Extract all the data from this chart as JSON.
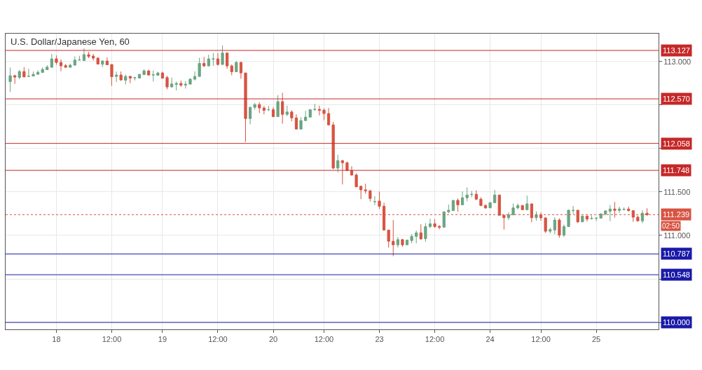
{
  "chart_data": {
    "type": "candlestick",
    "title": "U.S. Dollar/Japanese Yen, 60",
    "categories": [
      null,
      null,
      null,
      null,
      null,
      null,
      null,
      null,
      null,
      null,
      "18",
      null,
      null,
      null,
      null,
      null,
      null,
      null,
      null,
      null,
      null,
      null,
      "12:00",
      null,
      null,
      null,
      null,
      null,
      null,
      null,
      null,
      null,
      null,
      "19",
      null,
      null,
      null,
      null,
      null,
      null,
      null,
      null,
      null,
      null,
      null,
      "12:00",
      null,
      null,
      null,
      null,
      null,
      null,
      null,
      null,
      null,
      null,
      null,
      "20",
      null,
      null,
      null,
      null,
      null,
      null,
      null,
      null,
      null,
      null,
      "12:00",
      null,
      null,
      null,
      null,
      null,
      null,
      null,
      null,
      null,
      null,
      null,
      "23",
      null,
      null,
      null,
      null,
      null,
      null,
      null,
      null,
      null,
      null,
      null,
      "12:00",
      null,
      null,
      null,
      null,
      null,
      null,
      null,
      null,
      null,
      null,
      null,
      "24",
      null,
      null,
      null,
      null,
      null,
      null,
      null,
      null,
      null,
      null,
      "12:00",
      null,
      null,
      null,
      null,
      null,
      null,
      null,
      null,
      null,
      null,
      null,
      "25",
      null,
      null,
      null,
      null,
      null,
      null,
      null,
      null,
      null,
      null,
      null
    ],
    "colors": [
      "#6ba583",
      "#d75442",
      "#6ba583",
      "#d75442",
      "#6ba583",
      "#6ba583",
      "#6ba583",
      "#6ba583",
      "#6ba583",
      "#6ba583",
      "#d75442",
      "#d75442",
      "#d75442",
      "#6ba583",
      "#6ba583",
      "#6ba583",
      "#6ba583",
      "#d75442",
      "#d75442",
      "#d75442",
      "#6ba583",
      "#d75442",
      "#d75442",
      "#6ba583",
      "#d75442",
      "#6ba583",
      "#d75442",
      "#6ba583",
      "#6ba583",
      "#6ba583",
      "#d75442",
      "#6ba583",
      "#6ba583",
      "#d75442",
      "#d75442",
      "#6ba583",
      "#6ba583",
      "#d75442",
      "#6ba583",
      "#6ba583",
      "#6ba583",
      "#6ba583",
      "#d75442",
      "#6ba583",
      "#6ba583",
      "#d75442",
      "#6ba583",
      "#d75442",
      "#d75442",
      "#6ba583",
      "#d75442",
      "#d75442",
      "#6ba583",
      "#6ba583",
      "#d75442",
      "#d75442",
      "#6ba583",
      "#d75442",
      "#6ba583",
      "#d75442",
      "#6ba583",
      "#d75442",
      "#d75442",
      "#6ba583",
      "#6ba583",
      "#6ba583",
      "#6ba583",
      "#d75442",
      "#d75442",
      "#d75442",
      "#d75442",
      "#6ba583",
      "#d75442",
      "#d75442",
      "#d75442",
      "#d75442",
      "#d75442",
      "#d75442",
      "#d75442",
      "#6ba583",
      "#d75442",
      "#d75442",
      "#d75442",
      "#d75442",
      "#6ba583",
      "#d75442",
      "#6ba583",
      "#6ba583",
      "#6ba583",
      "#d75442",
      "#6ba583",
      "#6ba583",
      "#d75442",
      "#d75442",
      "#6ba583",
      "#6ba583",
      "#6ba583",
      "#d75442",
      "#6ba583",
      "#6ba583",
      "#6ba583",
      "#d75442",
      "#d75442",
      "#d75442",
      "#6ba583",
      "#6ba583",
      "#d75442",
      "#d75442",
      "#6ba583",
      "#6ba583",
      "#6ba583",
      "#d75442",
      "#6ba583",
      "#d75442",
      "#6ba583",
      "#d75442",
      "#d75442",
      "#6ba583",
      "#6ba583",
      "#d75442",
      "#6ba583",
      "#6ba583",
      "#6ba583",
      "#d75442",
      "#6ba583",
      "#d75442",
      "#6ba583",
      "#6ba583",
      "#6ba583",
      "#6ba583",
      "#6ba583",
      "#d75442",
      "#6ba583",
      "#6ba583",
      "#d75442",
      "#d75442",
      "#d75442",
      "#6ba583",
      "#d75442"
    ],
    "ohlc": [
      [
        112.769,
        112.93,
        112.648,
        112.836
      ],
      [
        112.836,
        112.849,
        112.742,
        112.82
      ],
      [
        112.817,
        112.903,
        112.796,
        112.884
      ],
      [
        112.884,
        112.935,
        112.817,
        112.823
      ],
      [
        112.828,
        112.917,
        112.828,
        112.831
      ],
      [
        112.833,
        112.884,
        112.833,
        112.852
      ],
      [
        112.852,
        112.898,
        112.849,
        112.876
      ],
      [
        112.874,
        112.93,
        112.868,
        112.909
      ],
      [
        112.906,
        112.957,
        112.903,
        112.935
      ],
      [
        112.933,
        113.086,
        112.93,
        113.03
      ],
      [
        113.03,
        113.07,
        112.962,
        112.989
      ],
      [
        112.989,
        113.024,
        112.887,
        112.949
      ],
      [
        112.952,
        112.97,
        112.93,
        112.933
      ],
      [
        112.933,
        112.976,
        112.93,
        112.957
      ],
      [
        112.957,
        113.059,
        112.954,
        113.016
      ],
      [
        113.016,
        113.065,
        113.011,
        113.019
      ],
      [
        113.011,
        113.151,
        113.011,
        113.078
      ],
      [
        113.078,
        113.11,
        113.038,
        113.059
      ],
      [
        113.062,
        113.086,
        113.011,
        113.038
      ],
      [
        113.038,
        113.051,
        112.968,
        112.97
      ],
      [
        112.968,
        113.016,
        112.935,
        113.005
      ],
      [
        113.005,
        113.046,
        112.957,
        112.962
      ],
      [
        112.965,
        112.965,
        112.72,
        112.825
      ],
      [
        112.828,
        112.884,
        112.763,
        112.844
      ],
      [
        112.844,
        112.884,
        112.777,
        112.788
      ],
      [
        112.785,
        112.849,
        112.734,
        112.828
      ],
      [
        112.828,
        112.836,
        112.75,
        112.809
      ],
      [
        112.812,
        112.823,
        112.782,
        112.815
      ],
      [
        112.809,
        112.855,
        112.806,
        112.852
      ],
      [
        112.849,
        112.911,
        112.847,
        112.892
      ],
      [
        112.892,
        112.903,
        112.839,
        112.844
      ],
      [
        112.844,
        112.895,
        112.769,
        112.847
      ],
      [
        112.841,
        112.882,
        112.836,
        112.868
      ],
      [
        112.868,
        112.882,
        112.801,
        112.809
      ],
      [
        112.815,
        112.836,
        112.68,
        112.707
      ],
      [
        112.707,
        112.815,
        112.702,
        112.742
      ],
      [
        112.736,
        112.769,
        112.667,
        112.747
      ],
      [
        112.747,
        112.782,
        112.707,
        112.728
      ],
      [
        112.728,
        112.774,
        112.688,
        112.739
      ],
      [
        112.739,
        112.809,
        112.737,
        112.796
      ],
      [
        112.796,
        112.887,
        112.782,
        112.828
      ],
      [
        112.828,
        113.043,
        112.823,
        112.978
      ],
      [
        112.978,
        113.051,
        112.938,
        112.949
      ],
      [
        112.949,
        113.078,
        112.944,
        113.03
      ],
      [
        113.027,
        113.097,
        112.949,
        113.03
      ],
      [
        113.03,
        113.097,
        112.952,
        112.965
      ],
      [
        112.965,
        113.185,
        112.965,
        113.097
      ],
      [
        113.097,
        113.105,
        112.917,
        112.949
      ],
      [
        112.949,
        112.965,
        112.841,
        112.882
      ],
      [
        112.882,
        113.005,
        112.879,
        112.989
      ],
      [
        112.989,
        112.997,
        112.801,
        112.868
      ],
      [
        112.868,
        112.868,
        112.075,
        112.344
      ],
      [
        112.344,
        112.481,
        112.277,
        112.473
      ],
      [
        112.473,
        112.522,
        112.446,
        112.505
      ],
      [
        112.505,
        112.532,
        112.406,
        112.465
      ],
      [
        112.465,
        112.487,
        112.392,
        112.438
      ],
      [
        112.444,
        112.489,
        112.43,
        112.446
      ],
      [
        112.446,
        112.473,
        112.36,
        112.366
      ],
      [
        112.366,
        112.613,
        112.366,
        112.538
      ],
      [
        112.538,
        112.64,
        112.285,
        112.392
      ],
      [
        112.392,
        112.492,
        112.371,
        112.419
      ],
      [
        112.419,
        112.438,
        112.312,
        112.352
      ],
      [
        112.352,
        112.392,
        112.223,
        112.223
      ],
      [
        112.223,
        112.36,
        112.22,
        112.32
      ],
      [
        112.32,
        112.433,
        112.317,
        112.36
      ],
      [
        112.36,
        112.446,
        112.36,
        112.446
      ],
      [
        112.446,
        112.513,
        112.433,
        112.449
      ],
      [
        112.449,
        112.492,
        112.379,
        112.438
      ],
      [
        112.441,
        112.46,
        112.325,
        112.401
      ],
      [
        112.401,
        112.465,
        112.263,
        112.271
      ],
      [
        112.271,
        112.306,
        111.761,
        111.774
      ],
      [
        111.774,
        111.927,
        111.726,
        111.86
      ],
      [
        111.86,
        111.868,
        111.586,
        111.836
      ],
      [
        111.836,
        111.849,
        111.739,
        111.747
      ],
      [
        111.747,
        111.796,
        111.688,
        111.694
      ],
      [
        111.694,
        111.712,
        111.554,
        111.559
      ],
      [
        111.565,
        111.573,
        111.417,
        111.524
      ],
      [
        111.524,
        111.594,
        111.478,
        111.513
      ],
      [
        111.513,
        111.524,
        111.39,
        111.425
      ],
      [
        111.387,
        111.452,
        111.349,
        111.39
      ],
      [
        111.395,
        111.505,
        111.304,
        111.336
      ],
      [
        111.336,
        111.376,
        111.062,
        111.062
      ],
      [
        111.062,
        111.062,
        110.86,
        110.933
      ],
      [
        110.933,
        111.177,
        110.761,
        110.892
      ],
      [
        110.892,
        110.981,
        110.86,
        110.952
      ],
      [
        110.952,
        110.96,
        110.868,
        110.892
      ],
      [
        110.892,
        110.952,
        110.887,
        110.946
      ],
      [
        110.941,
        111.016,
        110.909,
        110.989
      ],
      [
        110.989,
        111.056,
        110.909,
        111.03
      ],
      [
        111.03,
        111.129,
        110.949,
        110.96
      ],
      [
        110.962,
        111.142,
        110.927,
        111.102
      ],
      [
        111.102,
        111.191,
        111.083,
        111.134
      ],
      [
        111.134,
        111.188,
        111.089,
        111.102
      ],
      [
        111.105,
        111.116,
        111.07,
        111.094
      ],
      [
        111.094,
        111.272,
        111.094,
        111.272
      ],
      [
        111.272,
        111.355,
        111.255,
        111.29
      ],
      [
        111.285,
        111.403,
        111.282,
        111.403
      ],
      [
        111.403,
        111.425,
        111.272,
        111.352
      ],
      [
        111.352,
        111.505,
        111.349,
        111.433
      ],
      [
        111.433,
        111.551,
        111.392,
        111.465
      ],
      [
        111.47,
        111.511,
        111.438,
        111.473
      ],
      [
        111.473,
        111.519,
        111.406,
        111.417
      ],
      [
        111.417,
        111.438,
        111.336,
        111.344
      ],
      [
        111.344,
        111.358,
        111.304,
        111.317
      ],
      [
        111.317,
        111.384,
        111.312,
        111.376
      ],
      [
        111.376,
        111.524,
        111.371,
        111.465
      ],
      [
        111.465,
        111.465,
        111.231,
        111.231
      ],
      [
        111.231,
        111.242,
        111.067,
        111.204
      ],
      [
        111.204,
        111.269,
        111.177,
        111.237
      ],
      [
        111.237,
        111.366,
        111.231,
        111.317
      ],
      [
        111.317,
        111.366,
        111.298,
        111.344
      ],
      [
        111.344,
        111.349,
        111.29,
        111.296
      ],
      [
        111.296,
        111.457,
        111.29,
        111.363
      ],
      [
        111.363,
        111.363,
        111.151,
        111.204
      ],
      [
        111.204,
        111.277,
        111.169,
        111.237
      ],
      [
        111.237,
        111.263,
        111.169,
        111.202
      ],
      [
        111.202,
        111.204,
        111.027,
        111.048
      ],
      [
        111.048,
        111.089,
        111.022,
        111.067
      ],
      [
        111.062,
        111.21,
        111.013,
        111.177
      ],
      [
        111.177,
        111.196,
        110.973,
        111.003
      ],
      [
        111.003,
        111.124,
        110.981,
        111.102
      ],
      [
        111.102,
        111.296,
        111.097,
        111.29
      ],
      [
        111.285,
        111.339,
        111.25,
        111.288
      ],
      [
        111.29,
        111.29,
        111.142,
        111.156
      ],
      [
        111.156,
        111.223,
        111.156,
        111.223
      ],
      [
        111.223,
        111.228,
        111.161,
        111.188
      ],
      [
        111.194,
        111.231,
        111.183,
        111.196
      ],
      [
        111.196,
        111.21,
        111.164,
        111.199
      ],
      [
        111.199,
        111.255,
        111.196,
        111.247
      ],
      [
        111.247,
        111.29,
        111.231,
        111.282
      ],
      [
        111.277,
        111.349,
        111.164,
        111.304
      ],
      [
        111.304,
        111.384,
        111.204,
        111.288
      ],
      [
        111.288,
        111.331,
        111.261,
        111.304
      ],
      [
        111.298,
        111.323,
        111.288,
        111.301
      ],
      [
        111.304,
        111.331,
        111.274,
        111.285
      ],
      [
        111.285,
        111.285,
        111.156,
        111.21
      ],
      [
        111.21,
        111.228,
        111.161,
        111.167
      ],
      [
        111.167,
        111.29,
        111.14,
        111.255
      ],
      [
        111.255,
        111.312,
        111.223,
        111.239
      ]
    ],
    "ylim": [
      109.92,
      113.32
    ],
    "yticks": [
      {
        "value": 110,
        "label": null
      },
      {
        "value": 110.5,
        "label": null
      },
      {
        "value": 111,
        "label": "111.000"
      },
      {
        "value": 111.5,
        "label": "111.500"
      },
      {
        "value": 112,
        "label": null
      },
      {
        "value": 112.5,
        "label": null
      },
      {
        "value": 113,
        "label": "113.000"
      }
    ],
    "grid": true,
    "ref_lines": [
      {
        "axis": "y",
        "value": 113.127,
        "label": "113.127",
        "color": "#c62828"
      },
      {
        "axis": "y",
        "value": 112.57,
        "label": "112.570",
        "color": "#c62828"
      },
      {
        "axis": "y",
        "value": 112.058,
        "label": "112.058",
        "color": "#c62828"
      },
      {
        "axis": "y",
        "value": 111.748,
        "label": "111.748",
        "color": "#c62828"
      },
      {
        "axis": "y",
        "value": 111.239,
        "label": "111.239",
        "color": "#d75442",
        "line_style": "dotted"
      },
      {
        "axis": "y",
        "value": 110.787,
        "label": "110.787",
        "color": "#1a1aa8"
      },
      {
        "axis": "y",
        "value": 110.548,
        "label": "110.548",
        "color": "#1a1aa8"
      },
      {
        "axis": "y",
        "value": 110.0,
        "label": "110.000",
        "color": "#1a1aa8"
      }
    ],
    "annotations": [
      "02:50"
    ]
  }
}
